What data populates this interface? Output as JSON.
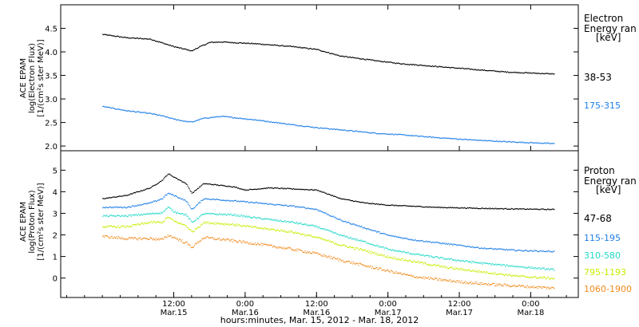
{
  "colors": {
    "black": "#000000",
    "blue": "#1f7fe6",
    "cyan": "#22d8c8",
    "yellowgreen": "#c8ec00",
    "orange": "#f08a1c"
  },
  "xaxis": {
    "title": "hours:minutes, Mar. 15, 2012 - Mar. 18, 2012",
    "ticks": [
      {
        "t": 12,
        "time": "12:00",
        "date": "Mar.15"
      },
      {
        "t": 24,
        "time": "0:00",
        "date": "Mar.16"
      },
      {
        "t": 36,
        "time": "12:00",
        "date": "Mar.16"
      },
      {
        "t": 48,
        "time": "0:00",
        "date": "Mar.17"
      },
      {
        "t": 60,
        "time": "12:00",
        "date": "Mar.17"
      },
      {
        "t": 72,
        "time": "0:00",
        "date": "Mar.18"
      }
    ]
  },
  "chart_data": [
    {
      "type": "scatter",
      "ylabel": [
        "ACE EPAM",
        "log(Electron Flux)",
        "[1/(cm²s ster MeV)]"
      ],
      "ylim": [
        1.9,
        5.0
      ],
      "yticks": [
        "2.0",
        "2.5",
        "3.0",
        "3.5",
        "4.0",
        "4.5"
      ],
      "yticks_values": [
        2.0,
        2.5,
        3.0,
        3.5,
        4.0,
        4.5
      ],
      "legend": {
        "title": [
          "Electron",
          "Energy ran",
          "[keV]"
        ]
      },
      "series": [
        {
          "name": "38-53",
          "color": "#000000",
          "points": [
            [
              0,
              4.38
            ],
            [
              4,
              4.31
            ],
            [
              8,
              4.28
            ],
            [
              10,
              4.2
            ],
            [
              12,
              4.12
            ],
            [
              14,
              4.06
            ],
            [
              15,
              4.03
            ],
            [
              16,
              4.1
            ],
            [
              18,
              4.21
            ],
            [
              20,
              4.22
            ],
            [
              26,
              4.18
            ],
            [
              32,
              4.12
            ],
            [
              36,
              4.06
            ],
            [
              40,
              3.92
            ],
            [
              46,
              3.82
            ],
            [
              50,
              3.76
            ],
            [
              56,
              3.7
            ],
            [
              62,
              3.64
            ],
            [
              68,
              3.58
            ],
            [
              74,
              3.55
            ],
            [
              76,
              3.54
            ]
          ]
        },
        {
          "name": "175-315",
          "color": "#1f7fe6",
          "points": [
            [
              0,
              2.85
            ],
            [
              4,
              2.76
            ],
            [
              8,
              2.7
            ],
            [
              10,
              2.65
            ],
            [
              12,
              2.58
            ],
            [
              14,
              2.53
            ],
            [
              15,
              2.52
            ],
            [
              17,
              2.6
            ],
            [
              20,
              2.64
            ],
            [
              26,
              2.56
            ],
            [
              32,
              2.46
            ],
            [
              36,
              2.4
            ],
            [
              42,
              2.33
            ],
            [
              46,
              2.28
            ],
            [
              50,
              2.25
            ],
            [
              56,
              2.19
            ],
            [
              62,
              2.14
            ],
            [
              68,
              2.1
            ],
            [
              74,
              2.07
            ],
            [
              76,
              2.06
            ]
          ]
        }
      ]
    },
    {
      "type": "scatter",
      "ylabel": [
        "ACE EPAM",
        "log(Proton Flux)",
        "[1/(cm²s ster MeV)]"
      ],
      "ylim": [
        -0.9,
        5.9
      ],
      "yticks": [
        "0",
        "1",
        "2",
        "3",
        "4",
        "5"
      ],
      "yticks_values": [
        0,
        1,
        2,
        3,
        4,
        5
      ],
      "legend": {
        "title": [
          "Proton",
          "Energy ran",
          "[keV]"
        ]
      },
      "series": [
        {
          "name": "47-68",
          "color": "#000000",
          "points": [
            [
              0,
              3.7
            ],
            [
              4,
              3.85
            ],
            [
              8,
              4.2
            ],
            [
              10,
              4.55
            ],
            [
              11,
              4.85
            ],
            [
              12,
              4.7
            ],
            [
              14,
              4.4
            ],
            [
              15,
              3.95
            ],
            [
              17,
              4.4
            ],
            [
              22,
              4.25
            ],
            [
              24,
              4.1
            ],
            [
              28,
              4.2
            ],
            [
              32,
              4.15
            ],
            [
              36,
              4.1
            ],
            [
              40,
              3.7
            ],
            [
              44,
              3.5
            ],
            [
              48,
              3.4
            ],
            [
              52,
              3.35
            ],
            [
              56,
              3.3
            ],
            [
              64,
              3.25
            ],
            [
              70,
              3.22
            ],
            [
              76,
              3.2
            ]
          ]
        },
        {
          "name": "115-195",
          "color": "#1f7fe6",
          "points": [
            [
              0,
              3.3
            ],
            [
              4,
              3.3
            ],
            [
              8,
              3.5
            ],
            [
              10,
              3.7
            ],
            [
              11,
              3.95
            ],
            [
              12,
              3.85
            ],
            [
              14,
              3.6
            ],
            [
              15,
              3.2
            ],
            [
              17,
              3.7
            ],
            [
              22,
              3.6
            ],
            [
              26,
              3.5
            ],
            [
              32,
              3.35
            ],
            [
              36,
              3.2
            ],
            [
              40,
              2.7
            ],
            [
              44,
              2.35
            ],
            [
              48,
              2.0
            ],
            [
              52,
              1.8
            ],
            [
              58,
              1.6
            ],
            [
              64,
              1.4
            ],
            [
              70,
              1.3
            ],
            [
              76,
              1.25
            ]
          ]
        },
        {
          "name": "310-580",
          "color": "#22d8c8",
          "points": [
            [
              0,
              2.9
            ],
            [
              4,
              2.9
            ],
            [
              8,
              3.0
            ],
            [
              10,
              3.05
            ],
            [
              11,
              3.3
            ],
            [
              12,
              3.1
            ],
            [
              14,
              2.95
            ],
            [
              15,
              2.6
            ],
            [
              17,
              3.0
            ],
            [
              22,
              2.95
            ],
            [
              26,
              2.8
            ],
            [
              32,
              2.6
            ],
            [
              36,
              2.4
            ],
            [
              40,
              2.0
            ],
            [
              44,
              1.7
            ],
            [
              48,
              1.35
            ],
            [
              52,
              1.15
            ],
            [
              58,
              0.9
            ],
            [
              64,
              0.7
            ],
            [
              70,
              0.55
            ],
            [
              76,
              0.4
            ]
          ]
        },
        {
          "name": "795-1193",
          "color": "#c8ec00",
          "points": [
            [
              0,
              2.4
            ],
            [
              4,
              2.4
            ],
            [
              8,
              2.6
            ],
            [
              10,
              2.6
            ],
            [
              11,
              2.85
            ],
            [
              12,
              2.65
            ],
            [
              14,
              2.45
            ],
            [
              15,
              2.15
            ],
            [
              17,
              2.6
            ],
            [
              22,
              2.5
            ],
            [
              26,
              2.35
            ],
            [
              32,
              2.15
            ],
            [
              36,
              1.9
            ],
            [
              40,
              1.55
            ],
            [
              44,
              1.3
            ],
            [
              48,
              1.0
            ],
            [
              52,
              0.8
            ],
            [
              58,
              0.5
            ],
            [
              64,
              0.3
            ],
            [
              70,
              0.1
            ],
            [
              76,
              0.0
            ]
          ]
        },
        {
          "name": "1060-1900",
          "color": "#f08a1c",
          "points": [
            [
              0,
              1.95
            ],
            [
              4,
              1.85
            ],
            [
              8,
              1.85
            ],
            [
              10,
              1.8
            ],
            [
              11,
              2.0
            ],
            [
              12,
              1.9
            ],
            [
              14,
              1.65
            ],
            [
              15,
              1.45
            ],
            [
              17,
              1.9
            ],
            [
              22,
              1.75
            ],
            [
              26,
              1.6
            ],
            [
              32,
              1.35
            ],
            [
              36,
              1.15
            ],
            [
              40,
              0.85
            ],
            [
              44,
              0.6
            ],
            [
              48,
              0.35
            ],
            [
              52,
              0.1
            ],
            [
              58,
              -0.1
            ],
            [
              64,
              -0.25
            ],
            [
              70,
              -0.35
            ],
            [
              76,
              -0.45
            ]
          ]
        }
      ]
    }
  ]
}
